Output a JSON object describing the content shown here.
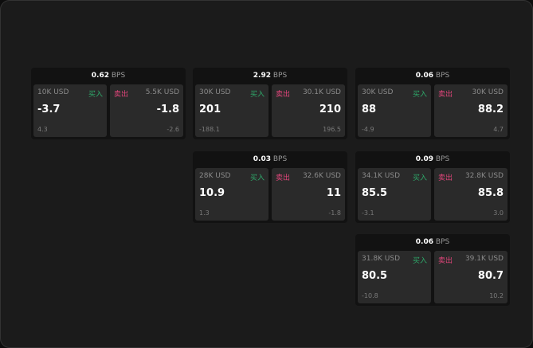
{
  "cards": [
    {
      "bps": "0.62",
      "unit": "BPS",
      "buy": {
        "size": "10K USD",
        "label": "买入",
        "price": "-3.7",
        "change": "4.3"
      },
      "sell": {
        "size": "5.5K USD",
        "label": "卖出",
        "price": "-1.8",
        "change": "-2.6"
      }
    },
    {
      "bps": "2.92",
      "unit": "BPS",
      "buy": {
        "size": "30K USD",
        "label": "买入",
        "price": "201",
        "change": "-188.1"
      },
      "sell": {
        "size": "30.1K USD",
        "label": "卖出",
        "price": "210",
        "change": "196.5"
      }
    },
    {
      "bps": "0.06",
      "unit": "BPS",
      "buy": {
        "size": "30K USD",
        "label": "买入",
        "price": "88",
        "change": "-4.9"
      },
      "sell": {
        "size": "30K USD",
        "label": "卖出",
        "price": "88.2",
        "change": "4.7"
      }
    },
    {
      "bps": "0.03",
      "unit": "BPS",
      "buy": {
        "size": "28K USD",
        "label": "买入",
        "price": "10.9",
        "change": "1.3"
      },
      "sell": {
        "size": "32.6K USD",
        "label": "卖出",
        "price": "11",
        "change": "-1.8"
      }
    },
    {
      "bps": "0.09",
      "unit": "BPS",
      "buy": {
        "size": "34.1K USD",
        "label": "买入",
        "price": "85.5",
        "change": "-3.1"
      },
      "sell": {
        "size": "32.8K USD",
        "label": "卖出",
        "price": "85.8",
        "change": "3.0"
      }
    },
    {
      "bps": "0.06",
      "unit": "BPS",
      "buy": {
        "size": "31.8K USD",
        "label": "买入",
        "price": "80.5",
        "change": "-10.8"
      },
      "sell": {
        "size": "39.1K USD",
        "label": "卖出",
        "price": "80.7",
        "change": "10.2"
      }
    }
  ],
  "colors": {
    "buy": "#2ea96a",
    "sell": "#e0457a"
  }
}
